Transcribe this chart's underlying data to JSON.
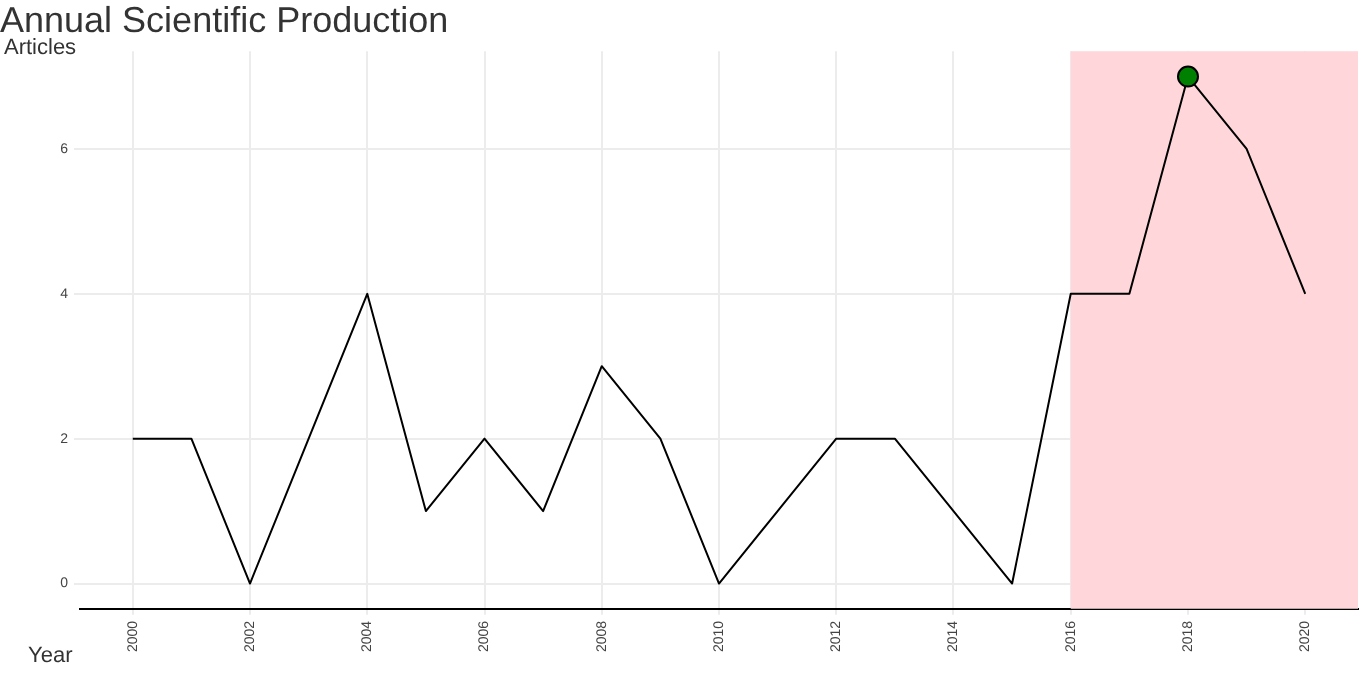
{
  "chart_data": {
    "type": "line",
    "title": "Annual Scientific Production",
    "xlabel": "Year",
    "ylabel": "Articles",
    "x": [
      2000,
      2001,
      2002,
      2003,
      2004,
      2005,
      2006,
      2007,
      2008,
      2009,
      2010,
      2011,
      2012,
      2013,
      2014,
      2015,
      2016,
      2017,
      2018,
      2019,
      2020
    ],
    "series": [
      {
        "color": "#000000",
        "values": [
          2,
          2,
          0,
          2,
          4,
          1,
          2,
          1,
          3,
          2,
          0,
          1,
          2,
          2,
          1,
          0,
          4,
          4,
          7,
          6,
          4
        ]
      },
      {
        "type": "scatter",
        "color": "#008000",
        "x": [
          2018
        ],
        "values": [
          7
        ]
      }
    ],
    "xlim": [
      1999.1,
      2020.9
    ],
    "xticks": [
      2000,
      2002,
      2004,
      2006,
      2008,
      2010,
      2012,
      2014,
      2016,
      2018,
      2020
    ],
    "ylim": [
      -0.35,
      7.35
    ],
    "yticks": [
      0,
      2,
      4,
      6
    ],
    "bands": [
      {
        "axis": "x",
        "from": 2016,
        "to": 2020.9,
        "color": "#ffd6d9"
      }
    ],
    "grid": true,
    "line_style": "solid"
  }
}
